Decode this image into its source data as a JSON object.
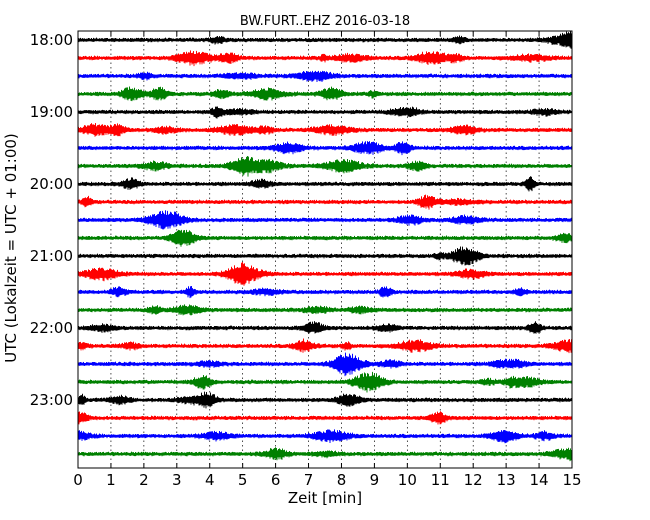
{
  "chart_data": {
    "type": "line",
    "title": "BW.FURT..EHZ 2016-03-18",
    "xlabel": "Zeit  [min]",
    "ylabel": "UTC (Lokalzeit = UTC + 01:00)",
    "xlim": [
      0,
      15
    ],
    "x_ticks": [
      "0",
      "1",
      "2",
      "3",
      "4",
      "5",
      "6",
      "7",
      "8",
      "9",
      "10",
      "11",
      "12",
      "13",
      "14",
      "15"
    ],
    "y_ticks": [
      "18:00",
      "19:00",
      "20:00",
      "21:00",
      "22:00",
      "23:00"
    ],
    "trace_interval_min": 15,
    "grid": "vertical-dotted",
    "trace_colors": [
      "#000000",
      "#ff0000",
      "#0000ff",
      "#008000"
    ],
    "traces": [
      {
        "start": "18:00",
        "color": "#000000"
      },
      {
        "start": "18:15",
        "color": "#ff0000"
      },
      {
        "start": "18:30",
        "color": "#0000ff"
      },
      {
        "start": "18:45",
        "color": "#008000"
      },
      {
        "start": "19:00",
        "color": "#000000"
      },
      {
        "start": "19:15",
        "color": "#ff0000"
      },
      {
        "start": "19:30",
        "color": "#0000ff"
      },
      {
        "start": "19:45",
        "color": "#008000"
      },
      {
        "start": "20:00",
        "color": "#000000"
      },
      {
        "start": "20:15",
        "color": "#ff0000"
      },
      {
        "start": "20:30",
        "color": "#0000ff"
      },
      {
        "start": "20:45",
        "color": "#008000"
      },
      {
        "start": "21:00",
        "color": "#000000"
      },
      {
        "start": "21:15",
        "color": "#ff0000"
      },
      {
        "start": "21:30",
        "color": "#0000ff"
      },
      {
        "start": "21:45",
        "color": "#008000"
      },
      {
        "start": "22:00",
        "color": "#000000"
      },
      {
        "start": "22:15",
        "color": "#ff0000"
      },
      {
        "start": "22:30",
        "color": "#0000ff"
      },
      {
        "start": "22:45",
        "color": "#008000"
      },
      {
        "start": "23:00",
        "color": "#000000"
      },
      {
        "start": "23:15",
        "color": "#ff0000"
      },
      {
        "start": "23:30",
        "color": "#0000ff"
      },
      {
        "start": "23:45",
        "color": "#008000"
      }
    ]
  }
}
